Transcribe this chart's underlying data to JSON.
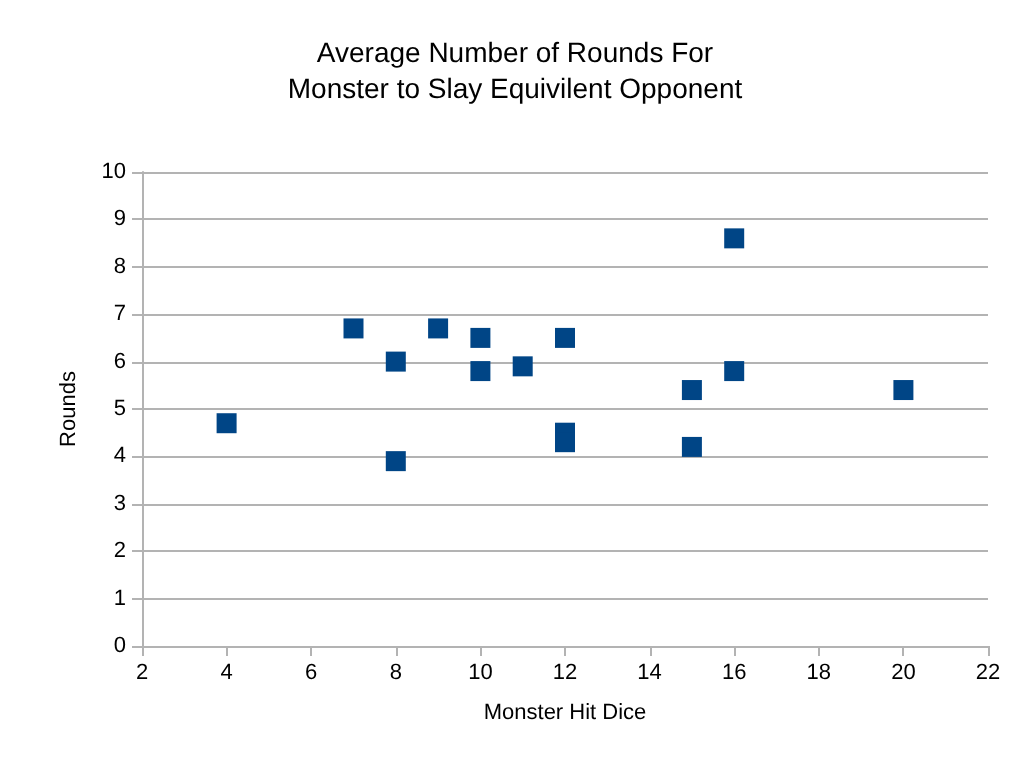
{
  "chart_data": {
    "type": "scatter",
    "title": "Average Number of Rounds For\nMonster to Slay Equivilent Opponent",
    "xlabel": "Monster Hit Dice",
    "ylabel": "Rounds",
    "x": [
      4,
      7,
      8,
      8,
      9,
      10,
      10,
      11,
      12,
      12,
      12,
      15,
      15,
      16,
      16,
      20
    ],
    "values": [
      4.7,
      6.7,
      6.0,
      3.9,
      6.7,
      6.5,
      5.8,
      5.9,
      6.5,
      4.5,
      4.3,
      5.4,
      4.2,
      8.6,
      5.8,
      5.4
    ],
    "color": "#004586",
    "marker": "square",
    "grid": "y",
    "xlim": [
      2,
      22
    ],
    "xticks": [
      2,
      4,
      6,
      8,
      10,
      12,
      14,
      16,
      18,
      20,
      22
    ],
    "ylim": [
      0,
      10
    ],
    "yticks": [
      0,
      1,
      2,
      3,
      4,
      5,
      6,
      7,
      8,
      9,
      10
    ]
  }
}
